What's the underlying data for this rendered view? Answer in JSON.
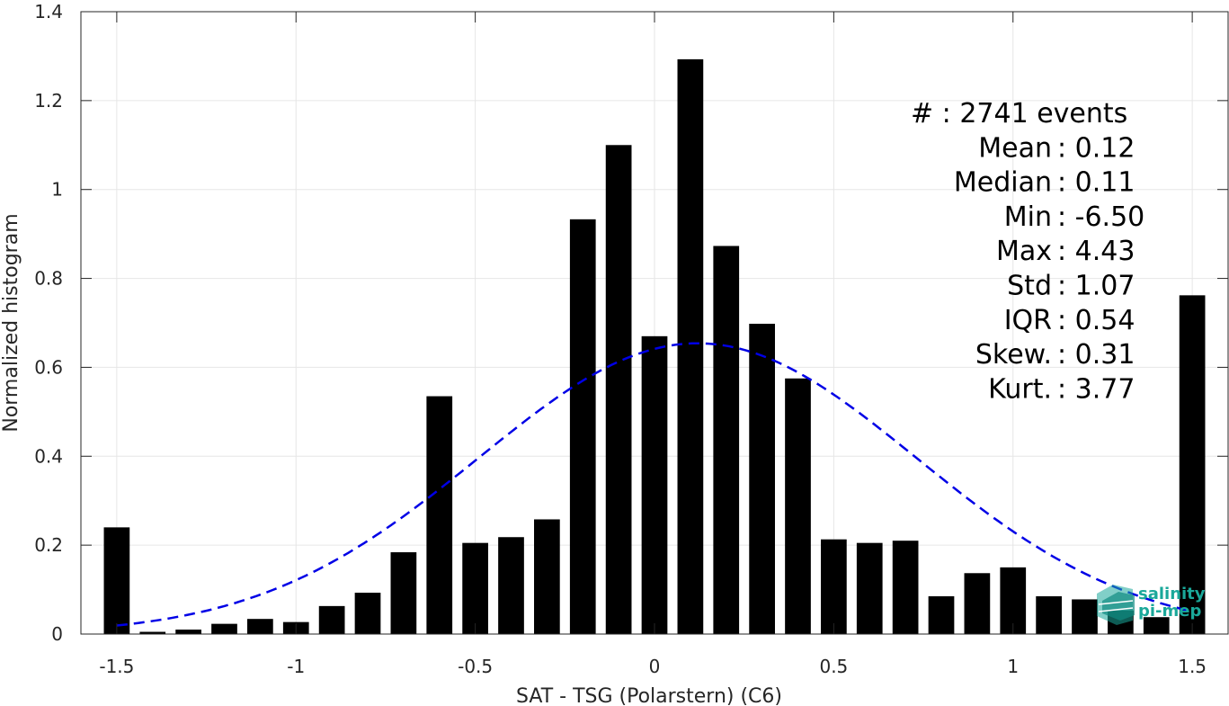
{
  "chart_data": {
    "type": "bar",
    "xlabel": "SAT - TSG (Polarstern) (C6)",
    "ylabel": "Normalized histogram",
    "xlim": [
      -1.6,
      1.6
    ],
    "ylim": [
      0,
      1.4
    ],
    "xticks": [
      -1.5,
      -1,
      -0.5,
      0,
      0.5,
      1,
      1.5
    ],
    "xtick_labels": [
      "-1.5",
      "-1",
      "-0.5",
      "0",
      "0.5",
      "1",
      "1.5"
    ],
    "yticks": [
      0,
      0.2,
      0.4,
      0.6,
      0.8,
      1,
      1.2,
      1.4
    ],
    "ytick_labels": [
      "0",
      "0.2",
      "0.4",
      "0.6",
      "0.8",
      "1",
      "1.2",
      "1.4"
    ],
    "grid": true,
    "bar_color": "#000000",
    "bins": {
      "x": [
        -1.5,
        -1.4,
        -1.3,
        -1.2,
        -1.1,
        -1.0,
        -0.9,
        -0.8,
        -0.7,
        -0.6,
        -0.5,
        -0.4,
        -0.3,
        -0.2,
        -0.1,
        0.0,
        0.1,
        0.2,
        0.3,
        0.4,
        0.5,
        0.6,
        0.7,
        0.8,
        0.9,
        1.0,
        1.1,
        1.2,
        1.3,
        1.4,
        1.5
      ],
      "values": [
        0.24,
        0.005,
        0.01,
        0.023,
        0.034,
        0.027,
        0.063,
        0.093,
        0.184,
        0.535,
        0.205,
        0.218,
        0.258,
        0.933,
        1.1,
        0.67,
        1.293,
        0.873,
        0.698,
        0.575,
        0.213,
        0.205,
        0.21,
        0.085,
        0.137,
        0.15,
        0.085,
        0.078,
        0.053,
        0.038,
        0.762
      ]
    },
    "fit_curve": {
      "style": "dashed",
      "color": "#0000e6",
      "mean": 0.12,
      "std": 0.61,
      "x_range": [
        -1.5,
        1.5
      ]
    },
    "stats": [
      "#  : 2741 events",
      "Mean : 0.12",
      "Median : 0.11",
      "Min : -6.50",
      "Max : 4.43",
      "Std : 1.07",
      "IQR : 0.54",
      "Skew. : 0.31",
      "Kurt. : 3.77"
    ]
  },
  "logo": {
    "line1": "salinity",
    "line2": "pi-mep",
    "color": "#1aa89a"
  }
}
